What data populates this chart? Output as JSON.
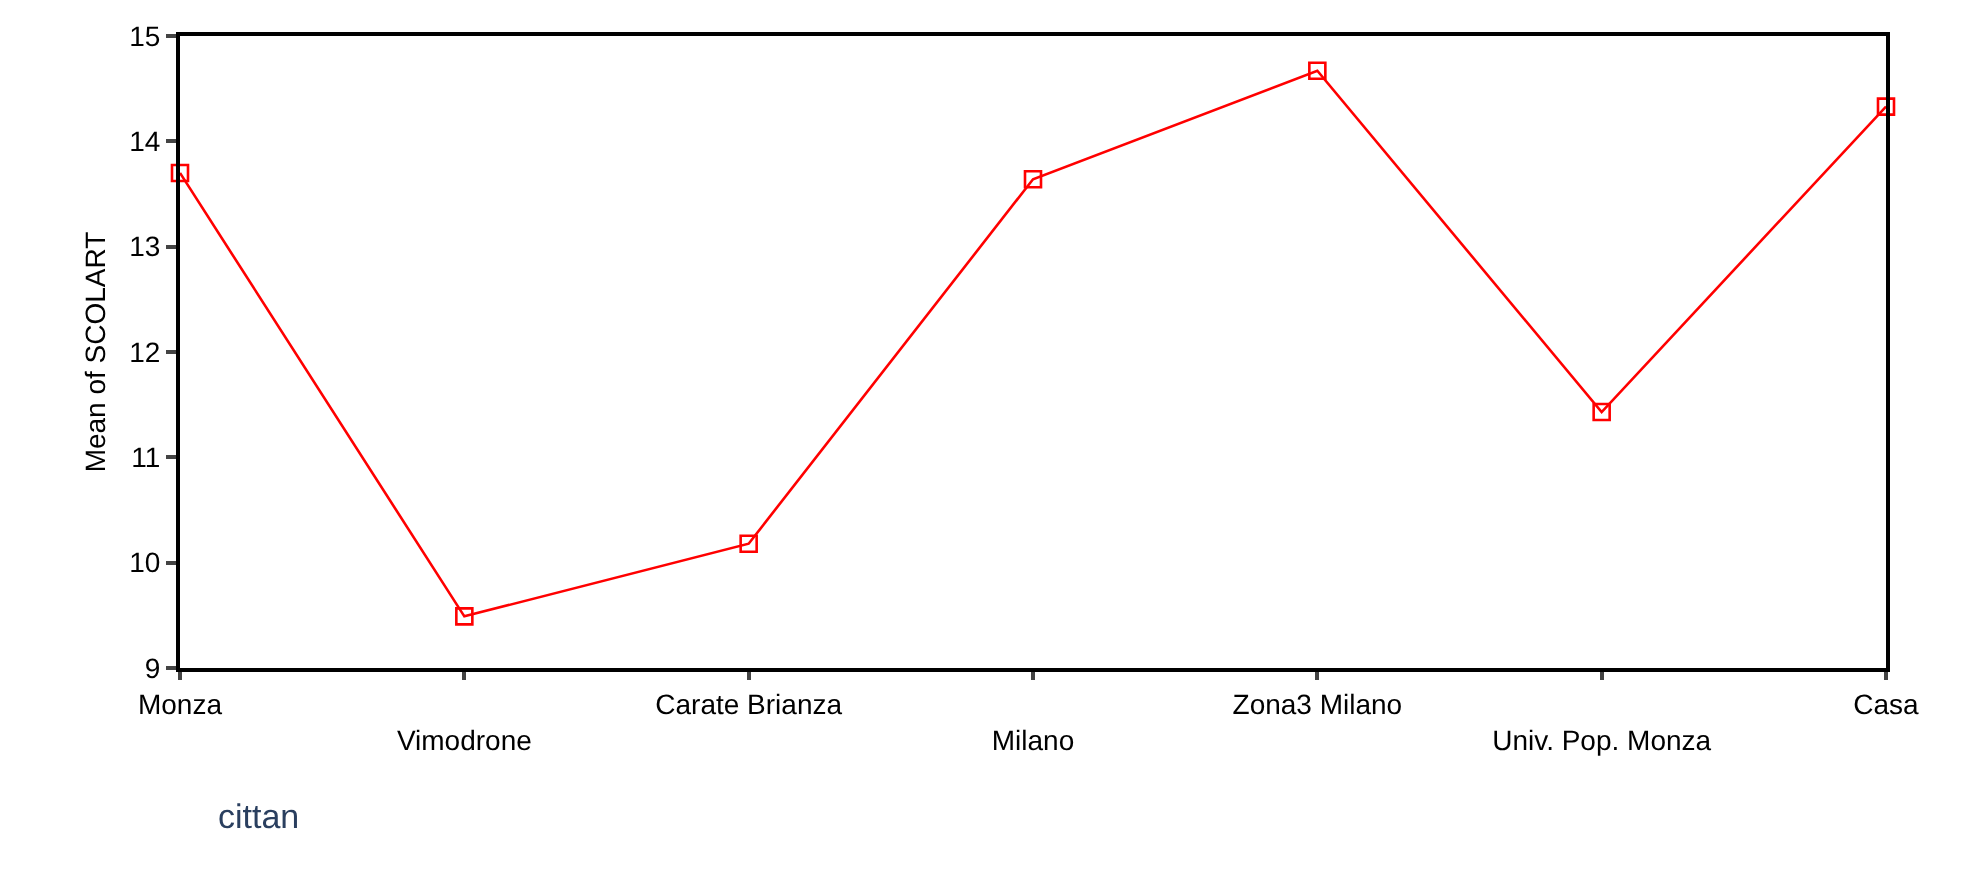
{
  "chart_data": {
    "type": "line",
    "xlabel": "cittan",
    "ylabel": "Mean of SCOLART",
    "categories": [
      "Monza",
      "Vimodrone",
      "Carate Brianza",
      "Milano",
      "Zona3 Milano",
      "Univ. Pop. Monza",
      "Casa"
    ],
    "series": [
      {
        "color": "#ff0000",
        "values": [
          13.7,
          9.49,
          10.18,
          13.64,
          14.67,
          11.43,
          14.33
        ]
      }
    ],
    "ylim": [
      9,
      15
    ],
    "yticks": [
      9,
      10,
      11,
      12,
      13,
      14,
      15
    ],
    "marker": "square",
    "line_style": "solid"
  }
}
